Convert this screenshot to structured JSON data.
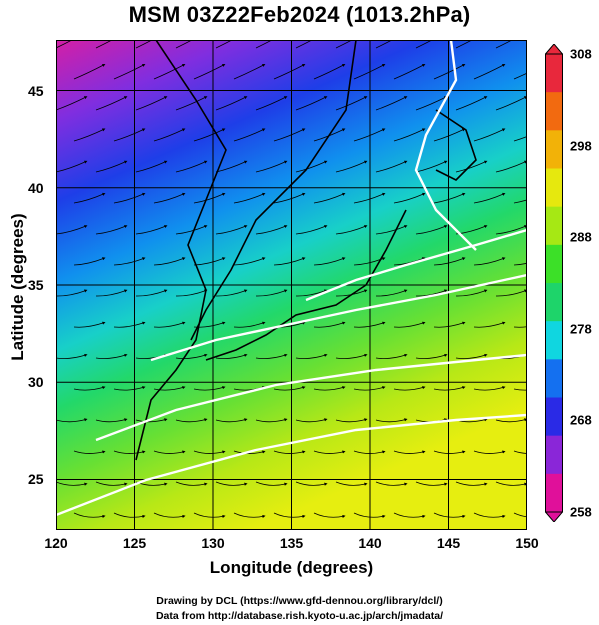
{
  "title": "MSM 03Z22Feb2024 (1013.2hPa)",
  "map": {
    "x_label": "Longitude (degrees)",
    "y_label": "Latitude  (degrees)",
    "x_ticks": [
      "120",
      "125",
      "130",
      "135",
      "140",
      "145",
      "150"
    ],
    "y_ticks": [
      "25",
      "30",
      "35",
      "40",
      "45"
    ],
    "lon_range": [
      120,
      150
    ],
    "lat_range": [
      22.4,
      47.6
    ],
    "field": "temperature shading with streamlines",
    "grid": true
  },
  "colorbar": {
    "ticks": [
      "308",
      "298",
      "288",
      "278",
      "268",
      "258"
    ],
    "range": [
      258,
      308
    ],
    "colors": [
      "#e0109a",
      "#8a26d8",
      "#2a2ae6",
      "#1470f0",
      "#10d6e0",
      "#1ed46a",
      "#3ce028",
      "#a6e814",
      "#e6e80e",
      "#f2b208",
      "#f26a10",
      "#e8283c"
    ]
  },
  "credits": {
    "line1": "Drawing by DCL (https://www.gfd-dennou.org/library/dcl/)",
    "line2": "Data from http://database.rish.kyoto-u.ac.jp/arch/jmadata/"
  }
}
